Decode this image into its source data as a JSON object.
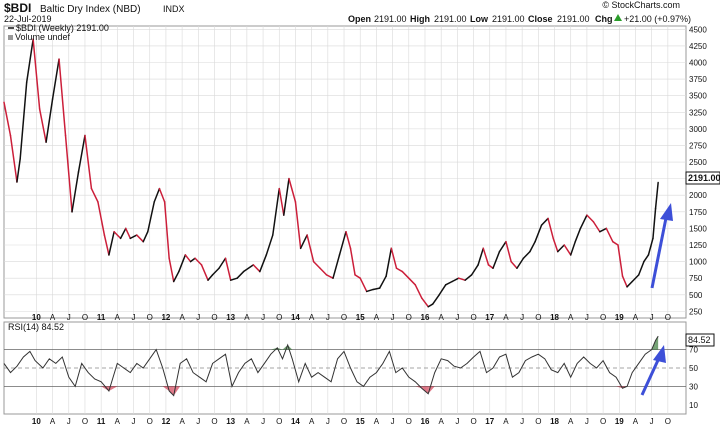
{
  "header": {
    "symbol": "$BDI",
    "name": "Baltic Dry Index (NBD)",
    "exchange": "INDX",
    "date": "22-Jul-2019",
    "open_label": "Open",
    "open": "2191.00",
    "high_label": "High",
    "high": "2191.00",
    "low_label": "Low",
    "low": "2191.00",
    "close_label": "Close",
    "close": "2191.00",
    "chg_label": "Chg",
    "chg": "+21.00 (+0.97%)",
    "up_icon": "up-triangle-icon",
    "brand": "© StockCharts.com"
  },
  "price_panel": {
    "legend_series": "$BDI (Weekly) 2191.00",
    "legend_volume": "Volume undef",
    "last_value_label": "2191.00"
  },
  "rsi_panel": {
    "legend": "RSI(14) 84.52",
    "last_value_label": "84.52"
  },
  "colors": {
    "up": "#111111",
    "down": "#cc1f3a",
    "arrow": "#3d4fd8",
    "grid": "#d9d9d9",
    "rsi_fill": "#3a7a3a"
  },
  "chart_data": [
    {
      "type": "line",
      "title": "Baltic Dry Index (NBD)",
      "series": [
        {
          "name": "$BDI (Weekly)",
          "values": [
            [
              2009.5,
              3400
            ],
            [
              2009.6,
              2900
            ],
            [
              2009.7,
              2200
            ],
            [
              2009.75,
              2550
            ],
            [
              2009.85,
              3700
            ],
            [
              2009.95,
              4350
            ],
            [
              2010.05,
              3300
            ],
            [
              2010.15,
              2800
            ],
            [
              2010.25,
              3450
            ],
            [
              2010.35,
              4050
            ],
            [
              2010.45,
              2900
            ],
            [
              2010.55,
              1750
            ],
            [
              2010.65,
              2350
            ],
            [
              2010.75,
              2900
            ],
            [
              2010.85,
              2100
            ],
            [
              2010.95,
              1900
            ],
            [
              2011.05,
              1400
            ],
            [
              2011.12,
              1100
            ],
            [
              2011.2,
              1450
            ],
            [
              2011.3,
              1350
            ],
            [
              2011.38,
              1500
            ],
            [
              2011.45,
              1350
            ],
            [
              2011.55,
              1400
            ],
            [
              2011.65,
              1300
            ],
            [
              2011.72,
              1450
            ],
            [
              2011.82,
              1900
            ],
            [
              2011.9,
              2100
            ],
            [
              2011.98,
              1900
            ],
            [
              2012.05,
              1050
            ],
            [
              2012.12,
              700
            ],
            [
              2012.2,
              850
            ],
            [
              2012.3,
              1100
            ],
            [
              2012.38,
              1000
            ],
            [
              2012.45,
              1050
            ],
            [
              2012.55,
              950
            ],
            [
              2012.65,
              720
            ],
            [
              2012.72,
              800
            ],
            [
              2012.82,
              900
            ],
            [
              2012.92,
              1050
            ],
            [
              2013.0,
              720
            ],
            [
              2013.1,
              750
            ],
            [
              2013.2,
              850
            ],
            [
              2013.35,
              950
            ],
            [
              2013.45,
              850
            ],
            [
              2013.55,
              1100
            ],
            [
              2013.65,
              1400
            ],
            [
              2013.75,
              2100
            ],
            [
              2013.82,
              1700
            ],
            [
              2013.9,
              2250
            ],
            [
              2014.0,
              1900
            ],
            [
              2014.08,
              1200
            ],
            [
              2014.18,
              1400
            ],
            [
              2014.28,
              1000
            ],
            [
              2014.38,
              900
            ],
            [
              2014.48,
              800
            ],
            [
              2014.58,
              750
            ],
            [
              2014.68,
              1100
            ],
            [
              2014.78,
              1450
            ],
            [
              2014.85,
              1200
            ],
            [
              2014.92,
              800
            ],
            [
              2015.0,
              750
            ],
            [
              2015.1,
              550
            ],
            [
              2015.2,
              580
            ],
            [
              2015.3,
              600
            ],
            [
              2015.4,
              780
            ],
            [
              2015.48,
              1200
            ],
            [
              2015.56,
              900
            ],
            [
              2015.65,
              850
            ],
            [
              2015.75,
              750
            ],
            [
              2015.85,
              650
            ],
            [
              2015.95,
              450
            ],
            [
              2016.05,
              320
            ],
            [
              2016.12,
              360
            ],
            [
              2016.22,
              500
            ],
            [
              2016.32,
              650
            ],
            [
              2016.42,
              700
            ],
            [
              2016.52,
              750
            ],
            [
              2016.62,
              720
            ],
            [
              2016.72,
              800
            ],
            [
              2016.82,
              950
            ],
            [
              2016.9,
              1200
            ],
            [
              2016.98,
              950
            ],
            [
              2017.05,
              900
            ],
            [
              2017.15,
              1150
            ],
            [
              2017.25,
              1300
            ],
            [
              2017.33,
              1000
            ],
            [
              2017.42,
              900
            ],
            [
              2017.52,
              1050
            ],
            [
              2017.62,
              1150
            ],
            [
              2017.7,
              1300
            ],
            [
              2017.8,
              1550
            ],
            [
              2017.9,
              1650
            ],
            [
              2017.98,
              1350
            ],
            [
              2018.05,
              1150
            ],
            [
              2018.15,
              1250
            ],
            [
              2018.25,
              1100
            ],
            [
              2018.32,
              1300
            ],
            [
              2018.4,
              1500
            ],
            [
              2018.5,
              1700
            ],
            [
              2018.6,
              1600
            ],
            [
              2018.7,
              1450
            ],
            [
              2018.8,
              1500
            ],
            [
              2018.9,
              1300
            ],
            [
              2018.98,
              1250
            ],
            [
              2019.05,
              780
            ],
            [
              2019.12,
              620
            ],
            [
              2019.2,
              700
            ],
            [
              2019.3,
              800
            ],
            [
              2019.38,
              1000
            ],
            [
              2019.45,
              1100
            ],
            [
              2019.52,
              1350
            ],
            [
              2019.56,
              1800
            ],
            [
              2019.6,
              2191
            ]
          ]
        }
      ],
      "x_ticks": [
        "10",
        "A",
        "J",
        "O",
        "11",
        "A",
        "J",
        "O",
        "12",
        "A",
        "J",
        "O",
        "13",
        "A",
        "J",
        "O",
        "14",
        "A",
        "J",
        "O",
        "15",
        "A",
        "J",
        "O",
        "16",
        "A",
        "J",
        "O",
        "17",
        "A",
        "J",
        "O",
        "18",
        "A",
        "J",
        "O",
        "19",
        "A",
        "J",
        "O"
      ],
      "y_ticks": [
        250,
        500,
        750,
        1000,
        1250,
        1500,
        1750,
        2000,
        2250,
        2500,
        2750,
        3000,
        3250,
        3500,
        3750,
        4000,
        4250,
        4500
      ],
      "ylim": [
        150,
        4550
      ],
      "xlim": [
        2009.5,
        2020.03
      ],
      "grid": true,
      "annotation": "blue upward arrow indicating rising trend"
    },
    {
      "type": "line",
      "title": "RSI(14)",
      "series": [
        {
          "name": "RSI(14)",
          "values": [
            [
              2009.5,
              55
            ],
            [
              2009.6,
              45
            ],
            [
              2009.7,
              52
            ],
            [
              2009.8,
              62
            ],
            [
              2009.9,
              68
            ],
            [
              2009.98,
              58
            ],
            [
              2010.1,
              50
            ],
            [
              2010.2,
              60
            ],
            [
              2010.3,
              55
            ],
            [
              2010.4,
              62
            ],
            [
              2010.5,
              40
            ],
            [
              2010.6,
              30
            ],
            [
              2010.7,
              55
            ],
            [
              2010.8,
              45
            ],
            [
              2010.9,
              38
            ],
            [
              2011.0,
              35
            ],
            [
              2011.12,
              25
            ],
            [
              2011.25,
              55
            ],
            [
              2011.35,
              50
            ],
            [
              2011.45,
              45
            ],
            [
              2011.55,
              55
            ],
            [
              2011.65,
              50
            ],
            [
              2011.75,
              60
            ],
            [
              2011.85,
              70
            ],
            [
              2011.95,
              50
            ],
            [
              2012.05,
              25
            ],
            [
              2012.12,
              20
            ],
            [
              2012.22,
              55
            ],
            [
              2012.32,
              60
            ],
            [
              2012.42,
              45
            ],
            [
              2012.52,
              40
            ],
            [
              2012.62,
              35
            ],
            [
              2012.72,
              55
            ],
            [
              2012.82,
              60
            ],
            [
              2012.92,
              65
            ],
            [
              2013.02,
              30
            ],
            [
              2013.12,
              45
            ],
            [
              2013.22,
              55
            ],
            [
              2013.32,
              60
            ],
            [
              2013.42,
              45
            ],
            [
              2013.52,
              55
            ],
            [
              2013.62,
              65
            ],
            [
              2013.72,
              72
            ],
            [
              2013.8,
              60
            ],
            [
              2013.88,
              75
            ],
            [
              2013.95,
              60
            ],
            [
              2014.05,
              35
            ],
            [
              2014.15,
              55
            ],
            [
              2014.25,
              40
            ],
            [
              2014.35,
              45
            ],
            [
              2014.45,
              40
            ],
            [
              2014.55,
              35
            ],
            [
              2014.65,
              60
            ],
            [
              2014.75,
              68
            ],
            [
              2014.85,
              50
            ],
            [
              2014.95,
              35
            ],
            [
              2015.05,
              30
            ],
            [
              2015.15,
              40
            ],
            [
              2015.25,
              45
            ],
            [
              2015.35,
              55
            ],
            [
              2015.45,
              68
            ],
            [
              2015.55,
              45
            ],
            [
              2015.65,
              50
            ],
            [
              2015.75,
              40
            ],
            [
              2015.85,
              35
            ],
            [
              2015.95,
              28
            ],
            [
              2016.05,
              22
            ],
            [
              2016.15,
              45
            ],
            [
              2016.25,
              60
            ],
            [
              2016.35,
              58
            ],
            [
              2016.45,
              52
            ],
            [
              2016.55,
              50
            ],
            [
              2016.65,
              55
            ],
            [
              2016.75,
              62
            ],
            [
              2016.85,
              68
            ],
            [
              2016.95,
              45
            ],
            [
              2017.05,
              50
            ],
            [
              2017.15,
              62
            ],
            [
              2017.25,
              65
            ],
            [
              2017.35,
              40
            ],
            [
              2017.45,
              45
            ],
            [
              2017.55,
              58
            ],
            [
              2017.65,
              62
            ],
            [
              2017.75,
              65
            ],
            [
              2017.85,
              60
            ],
            [
              2017.95,
              48
            ],
            [
              2018.05,
              45
            ],
            [
              2018.15,
              55
            ],
            [
              2018.25,
              40
            ],
            [
              2018.35,
              55
            ],
            [
              2018.45,
              62
            ],
            [
              2018.55,
              55
            ],
            [
              2018.65,
              50
            ],
            [
              2018.75,
              58
            ],
            [
              2018.85,
              45
            ],
            [
              2018.95,
              40
            ],
            [
              2019.05,
              28
            ],
            [
              2019.12,
              30
            ],
            [
              2019.2,
              45
            ],
            [
              2019.3,
              55
            ],
            [
              2019.4,
              65
            ],
            [
              2019.5,
              70
            ],
            [
              2019.56,
              80
            ],
            [
              2019.6,
              84.52
            ]
          ]
        }
      ],
      "y_ticks": [
        10,
        30,
        50,
        70
      ],
      "ylim": [
        0,
        100
      ],
      "reference_lines": [
        30,
        50,
        70
      ],
      "grid": true,
      "annotation": "blue upward arrow indicating rising trend"
    }
  ]
}
